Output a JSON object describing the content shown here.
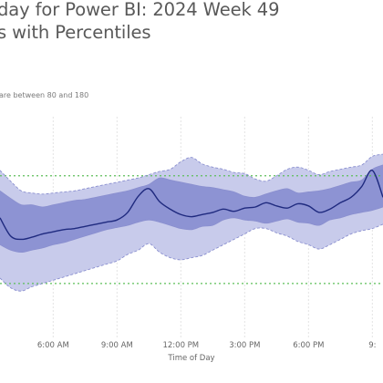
{
  "title": {
    "line1": "day for Power BI: 2024 Week 49",
    "line2": "s with Percentiles"
  },
  "subtitle_note": "are between 80 and 180",
  "colors": {
    "outer_band": "#c8cbeb",
    "inner_band": "#8d93d3",
    "median_line": "#1f2a7f",
    "band_edge": "#8a8fcf",
    "reference_line": "#5dbf5a",
    "grid": "#e3e3e3"
  },
  "chart_data": {
    "type": "area",
    "xlabel": "Time of Day",
    "ylabel": "",
    "x_unit": "hour of day",
    "xlim": [
      3.5,
      21.5
    ],
    "ylim": [
      30,
      250
    ],
    "x_ticks": [
      {
        "value": 6,
        "label": "6:00 AM"
      },
      {
        "value": 9,
        "label": "9:00 AM"
      },
      {
        "value": 12,
        "label": "12:00 PM"
      },
      {
        "value": 15,
        "label": "3:00 PM"
      },
      {
        "value": 18,
        "label": "6:00 PM"
      },
      {
        "value": 21,
        "label": "9:"
      }
    ],
    "reference_lines": [
      80,
      180
    ],
    "x": [
      3.5,
      4.0,
      4.5,
      5.0,
      5.5,
      6.0,
      6.5,
      7.0,
      7.5,
      8.0,
      8.5,
      9.0,
      9.5,
      10.0,
      10.5,
      11.0,
      11.5,
      12.0,
      12.5,
      13.0,
      13.5,
      14.0,
      14.5,
      15.0,
      15.5,
      16.0,
      16.5,
      17.0,
      17.5,
      18.0,
      18.5,
      19.0,
      19.5,
      20.0,
      20.5,
      21.0,
      21.5
    ],
    "series": [
      {
        "name": "",
        "role": "p5",
        "values": [
          85,
          76,
          73,
          77,
          80,
          83,
          86,
          89,
          92,
          95,
          98,
          101,
          107,
          111,
          117,
          109,
          104,
          102,
          104,
          106,
          111,
          116,
          121,
          126,
          131,
          131,
          127,
          124,
          119,
          116,
          112,
          116,
          121,
          126,
          129,
          131,
          135
        ]
      },
      {
        "name": "",
        "role": "p25",
        "values": [
          116,
          111,
          109,
          111,
          113,
          116,
          118,
          121,
          124,
          127,
          130,
          132,
          134,
          137,
          139,
          137,
          134,
          131,
          130,
          133,
          134,
          139,
          141,
          139,
          138,
          136,
          138,
          140,
          137,
          136,
          134,
          139,
          141,
          144,
          146,
          148,
          151
        ]
      },
      {
        "name": "",
        "role": "median",
        "values": [
          141,
          124,
          121,
          123,
          126,
          128,
          130,
          131,
          133,
          135,
          137,
          139,
          146,
          161,
          168,
          156,
          149,
          144,
          142,
          144,
          146,
          149,
          147,
          150,
          151,
          155,
          152,
          150,
          154,
          152,
          146,
          149,
          155,
          160,
          170,
          185,
          160
        ]
      },
      {
        "name": "",
        "role": "p75",
        "values": [
          166,
          159,
          153,
          153,
          151,
          153,
          155,
          157,
          158,
          160,
          162,
          164,
          166,
          169,
          172,
          178,
          176,
          174,
          172,
          170,
          169,
          167,
          165,
          161,
          160,
          163,
          166,
          168,
          164,
          165,
          166,
          168,
          171,
          174,
          176,
          186,
          190
        ]
      },
      {
        "name": "",
        "role": "p95",
        "values": [
          185,
          175,
          166,
          164,
          163,
          164,
          165,
          166,
          168,
          170,
          172,
          174,
          176,
          178,
          181,
          184,
          186,
          193,
          197,
          191,
          188,
          186,
          183,
          182,
          177,
          175,
          180,
          186,
          188,
          185,
          181,
          184,
          186,
          188,
          190,
          198,
          200
        ]
      }
    ]
  }
}
